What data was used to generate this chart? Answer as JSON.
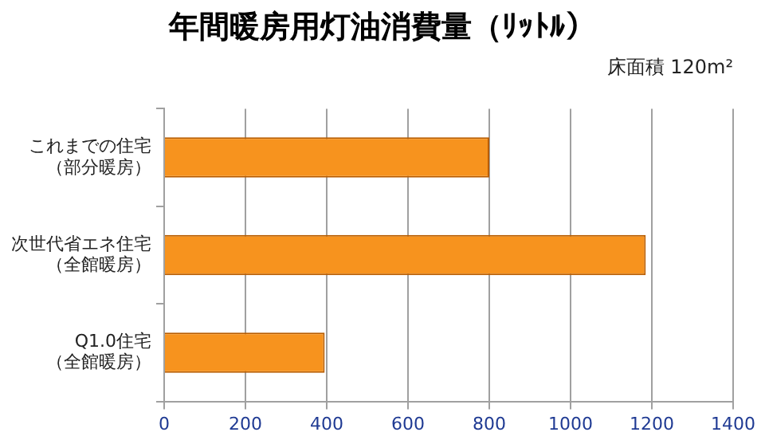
{
  "chart_data": {
    "type": "bar",
    "orientation": "horizontal",
    "title": "年間暖房用灯油消費量（ﾘｯﾄﾙ）",
    "annotations": [
      "床面積 120m²"
    ],
    "categories": [
      "これまでの住宅（部分暖房）",
      "次世代省エネ住宅（全館暖房）",
      "Q1.0住宅（全館暖房）"
    ],
    "values": [
      800,
      1185,
      395
    ],
    "color": "#f7931e",
    "xlim": [
      0,
      1400
    ],
    "xticks": [
      0,
      200,
      400,
      600,
      800,
      1000,
      1200,
      1400
    ],
    "grid": "x",
    "legend": false
  }
}
